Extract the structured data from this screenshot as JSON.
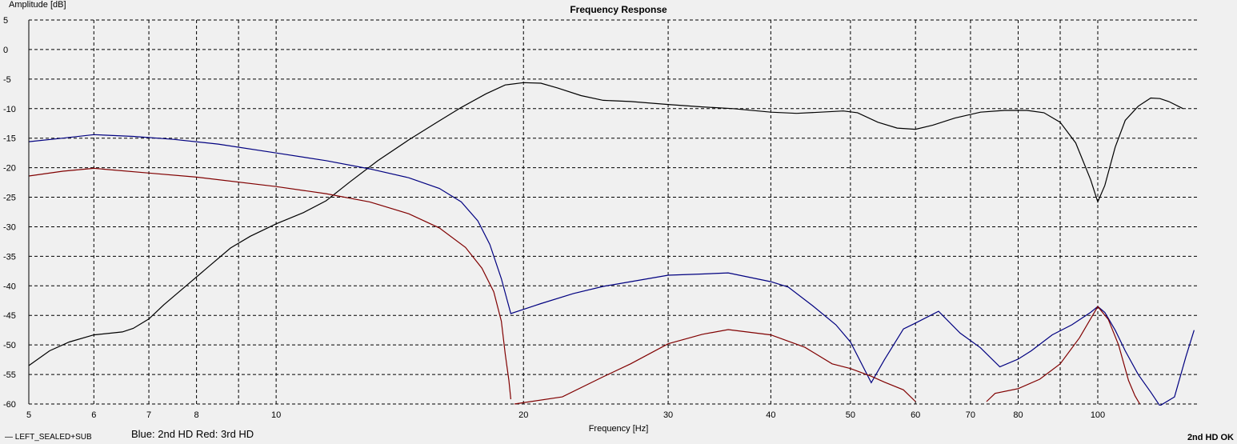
{
  "header": {
    "title": "Frequency Response"
  },
  "footer": {
    "legend_label": "— LEFT_SEALED+SUB",
    "note": "Blue: 2nd HD Red: 3rd HD",
    "corner_text": "2nd HD OK"
  },
  "colors": {
    "fundamental": "#000000",
    "hd2": "#000080",
    "hd3": "#800000",
    "grid": "#000000",
    "background": "#f0f0f0"
  },
  "chart_data": {
    "type": "line",
    "title": "Frequency Response",
    "xlabel": "Frequency [Hz]",
    "ylabel": "Amplitude [dB]",
    "xscale": "log",
    "xlim": [
      5,
      120
    ],
    "ylim": [
      -60,
      5
    ],
    "xticks": [
      5,
      6,
      7,
      8,
      10,
      20,
      30,
      40,
      50,
      60,
      70,
      80,
      100
    ],
    "xgrid": [
      5,
      6,
      7,
      8,
      9,
      10,
      20,
      30,
      40,
      50,
      60,
      70,
      80,
      90,
      100
    ],
    "yticks": [
      5,
      0,
      -5,
      -10,
      -15,
      -20,
      -25,
      -30,
      -35,
      -40,
      -45,
      -50,
      -55,
      -60
    ],
    "grid": true,
    "series": [
      {
        "name": "LEFT_SEALED+SUB",
        "color": "#000000",
        "points": [
          [
            5,
            -53.5
          ],
          [
            5.3,
            -51
          ],
          [
            5.6,
            -49.5
          ],
          [
            6,
            -48.3
          ],
          [
            6.5,
            -47.8
          ],
          [
            6.7,
            -47.2
          ],
          [
            7,
            -45.6
          ],
          [
            7.3,
            -43.2
          ],
          [
            7.8,
            -39.8
          ],
          [
            8.3,
            -36.6
          ],
          [
            8.8,
            -33.6
          ],
          [
            9.3,
            -31.6
          ],
          [
            10,
            -29.5
          ],
          [
            10.8,
            -27.6
          ],
          [
            11.5,
            -25.6
          ],
          [
            12.3,
            -22.4
          ],
          [
            13.3,
            -18.8
          ],
          [
            14.5,
            -15.3
          ],
          [
            15.7,
            -12.3
          ],
          [
            16.8,
            -9.8
          ],
          [
            18,
            -7.5
          ],
          [
            19,
            -6
          ],
          [
            20,
            -5.6
          ],
          [
            21,
            -5.7
          ],
          [
            22,
            -6.5
          ],
          [
            23.5,
            -7.8
          ],
          [
            25,
            -8.6
          ],
          [
            27,
            -8.8
          ],
          [
            30,
            -9.3
          ],
          [
            33,
            -9.7
          ],
          [
            36,
            -10
          ],
          [
            40,
            -10.6
          ],
          [
            43,
            -10.8
          ],
          [
            46,
            -10.6
          ],
          [
            49,
            -10.4
          ],
          [
            51,
            -10.7
          ],
          [
            54,
            -12.3
          ],
          [
            57,
            -13.3
          ],
          [
            60,
            -13.5
          ],
          [
            63,
            -12.8
          ],
          [
            67,
            -11.6
          ],
          [
            72,
            -10.6
          ],
          [
            77,
            -10.3
          ],
          [
            82,
            -10.3
          ],
          [
            86,
            -10.7
          ],
          [
            90,
            -12.3
          ],
          [
            94,
            -15.8
          ],
          [
            98,
            -22
          ],
          [
            100,
            -25.8
          ],
          [
            102,
            -23
          ],
          [
            105,
            -16.5
          ],
          [
            108,
            -12
          ],
          [
            112,
            -9.6
          ],
          [
            116,
            -8.2
          ],
          [
            119,
            -8.3
          ],
          [
            122,
            -8.8
          ],
          [
            127,
            -10
          ]
        ]
      },
      {
        "name": "",
        "color": "#000080",
        "points": [
          [
            5,
            -15.6
          ],
          [
            5.5,
            -15
          ],
          [
            6,
            -14.4
          ],
          [
            6.7,
            -14.7
          ],
          [
            7.5,
            -15.2
          ],
          [
            8.5,
            -16
          ],
          [
            10,
            -17.5
          ],
          [
            11.5,
            -18.8
          ],
          [
            13,
            -20.2
          ],
          [
            14.5,
            -21.7
          ],
          [
            15.8,
            -23.5
          ],
          [
            16.8,
            -25.8
          ],
          [
            17.6,
            -29
          ],
          [
            18.2,
            -33
          ],
          [
            18.8,
            -38.8
          ],
          [
            19.3,
            -44.7
          ],
          [
            21,
            -43
          ],
          [
            23,
            -41.3
          ],
          [
            25,
            -40.1
          ],
          [
            27,
            -39.3
          ],
          [
            30,
            -38.2
          ],
          [
            33,
            -38
          ],
          [
            35.5,
            -37.8
          ],
          [
            40,
            -39.3
          ],
          [
            42,
            -40.2
          ],
          [
            45,
            -43.4
          ],
          [
            48,
            -46.6
          ],
          [
            50,
            -49.5
          ],
          [
            53,
            -56.4
          ],
          [
            55,
            -52.5
          ],
          [
            58,
            -47.3
          ],
          [
            60,
            -46.3
          ],
          [
            64,
            -44.3
          ],
          [
            68,
            -48
          ],
          [
            72,
            -50.5
          ],
          [
            76,
            -53.7
          ],
          [
            80,
            -52.4
          ],
          [
            83,
            -51
          ],
          [
            88,
            -48.3
          ],
          [
            93,
            -46.6
          ],
          [
            98,
            -44.5
          ],
          [
            100,
            -43.5
          ],
          [
            102,
            -44.5
          ],
          [
            105,
            -47.5
          ],
          [
            108,
            -51
          ],
          [
            112,
            -55
          ],
          [
            116,
            -58
          ],
          [
            119,
            -60.3
          ],
          [
            124,
            -58.8
          ],
          [
            128,
            -52
          ],
          [
            131,
            -47.5
          ]
        ]
      },
      {
        "name": "",
        "color": "#800000",
        "points": [
          [
            5,
            -21.4
          ],
          [
            5.5,
            -20.6
          ],
          [
            6,
            -20.1
          ],
          [
            7,
            -20.9
          ],
          [
            8,
            -21.6
          ],
          [
            10,
            -23.2
          ],
          [
            11.5,
            -24.4
          ],
          [
            13,
            -25.8
          ],
          [
            14.5,
            -27.8
          ],
          [
            15.8,
            -30.2
          ],
          [
            17,
            -33.5
          ],
          [
            17.8,
            -37
          ],
          [
            18.4,
            -41
          ],
          [
            18.8,
            -46
          ],
          [
            19,
            -51.5
          ],
          [
            19.2,
            -56
          ],
          [
            19.3,
            -59.2
          ],
          null,
          [
            19.5,
            -60
          ],
          [
            22.3,
            -58.8
          ],
          [
            25,
            -55.4
          ],
          [
            27,
            -53.2
          ],
          [
            30,
            -49.8
          ],
          [
            33,
            -48.2
          ],
          [
            35.5,
            -47.4
          ],
          [
            40,
            -48.3
          ],
          [
            44,
            -50.4
          ],
          [
            47.5,
            -53.2
          ],
          [
            50,
            -54
          ],
          [
            53,
            -55.3
          ],
          [
            55,
            -56.3
          ],
          [
            58,
            -57.6
          ],
          [
            60,
            -59.6
          ],
          null,
          [
            73.2,
            -59.6
          ],
          [
            75,
            -58.2
          ],
          [
            80,
            -57.4
          ],
          [
            85,
            -55.8
          ],
          [
            90,
            -53.2
          ],
          [
            95,
            -48.8
          ],
          [
            100,
            -43.5
          ],
          [
            103,
            -45.7
          ],
          [
            106,
            -50
          ],
          [
            109,
            -56
          ],
          [
            111,
            -58.6
          ],
          [
            112.5,
            -60
          ]
        ]
      }
    ]
  }
}
